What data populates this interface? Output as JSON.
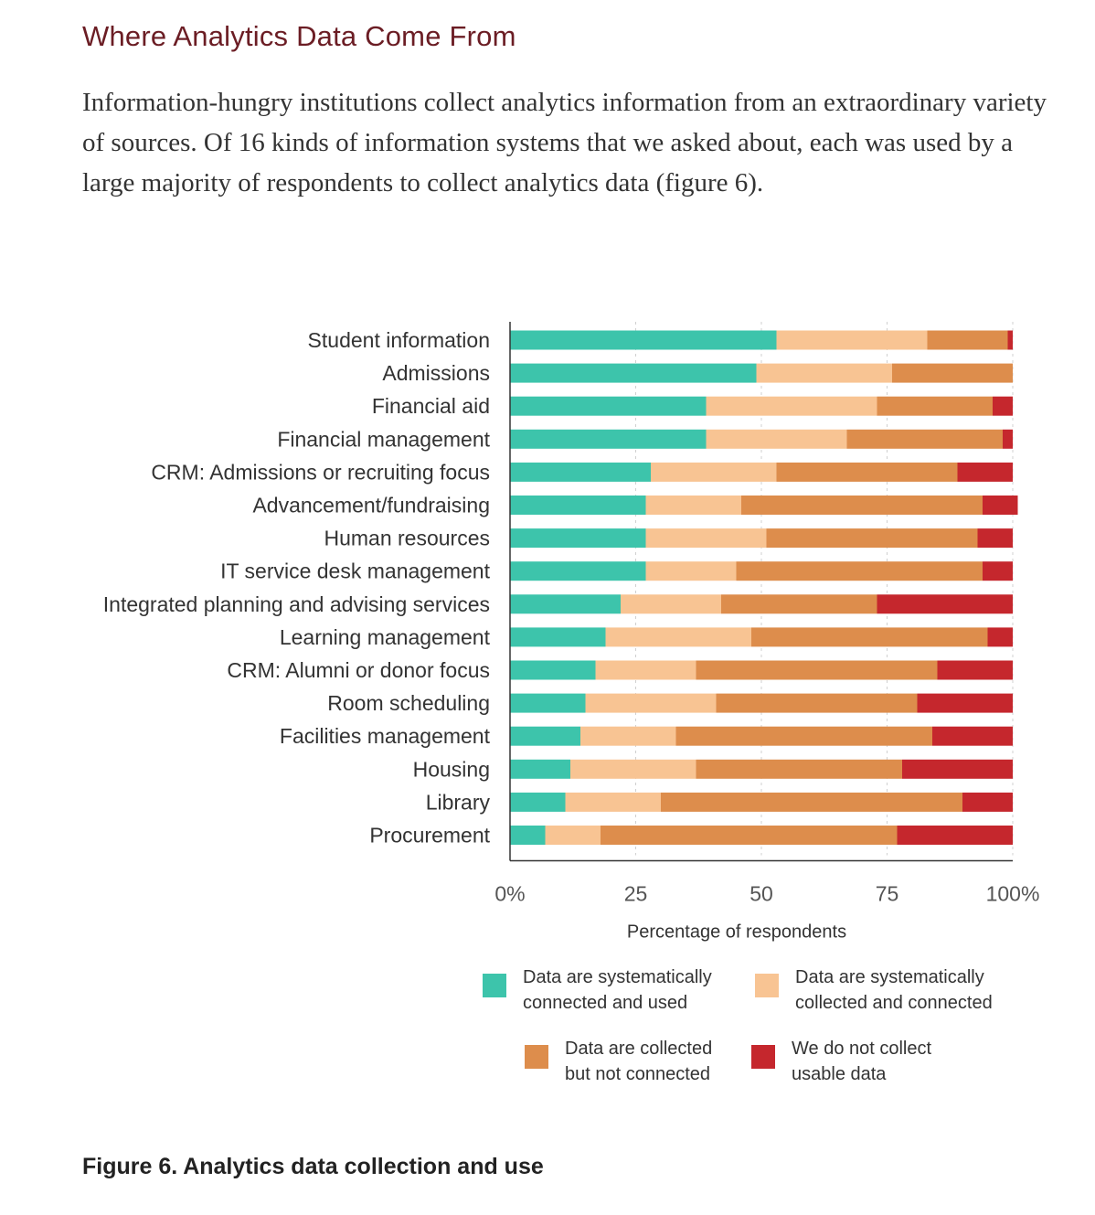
{
  "page": {
    "heading": "Where Analytics Data Come From",
    "intro": "Information-hungry institutions collect analytics information from an extraordinary variety of sources. Of 16 kinds of information systems that we asked about, each was used by a large majority of respondents to collect analytics data (figure 6).",
    "caption": "Figure 6. Analytics data collection and use"
  },
  "chart_data": {
    "type": "bar",
    "orientation": "horizontal",
    "stacked": true,
    "title": "Figure 6. Analytics data collection and use",
    "xlabel": "Percentage of respondents",
    "ylabel": "",
    "xlim": [
      0,
      100
    ],
    "ticks": [
      "0%",
      "25",
      "50",
      "75",
      "100%"
    ],
    "tick_values": [
      0,
      25,
      50,
      75,
      100
    ],
    "grid": true,
    "legend_position": "bottom",
    "categories": [
      "Student information",
      "Admissions",
      "Financial aid",
      "Financial management",
      "CRM: Admissions or recruiting focus",
      "Advancement/fundraising",
      "Human resources",
      "IT service desk management",
      "Integrated planning and advising services",
      "Learning management",
      "CRM: Alumni or donor focus",
      "Room scheduling",
      "Facilities management",
      "Housing",
      "Library",
      "Procurement"
    ],
    "series": [
      {
        "name": "Data are systematically connected and used",
        "color": "#3dc4ab",
        "values": [
          53,
          49,
          39,
          39,
          28,
          27,
          27,
          27,
          22,
          19,
          17,
          15,
          14,
          12,
          11,
          7
        ]
      },
      {
        "name": "Data are systematically collected and connected",
        "color": "#f8c493",
        "values": [
          30,
          27,
          34,
          28,
          25,
          19,
          24,
          18,
          20,
          29,
          20,
          26,
          19,
          25,
          19,
          11
        ]
      },
      {
        "name": "Data are collected but not connected",
        "color": "#dd8d4c",
        "values": [
          16,
          24,
          23,
          31,
          36,
          48,
          42,
          49,
          31,
          47,
          48,
          40,
          51,
          41,
          60,
          59
        ]
      },
      {
        "name": "We do not collect usable data",
        "color": "#c5272d",
        "values": [
          1,
          0,
          4,
          2,
          11,
          7,
          7,
          6,
          27,
          5,
          15,
          19,
          16,
          22,
          10,
          23
        ]
      }
    ]
  },
  "legend": [
    {
      "text": "Data are systematically\nconnected and used",
      "color": "#3dc4ab"
    },
    {
      "text": "Data are systematically\ncollected and connected",
      "color": "#f8c493"
    },
    {
      "text": "Data are collected\nbut not connected",
      "color": "#dd8d4c"
    },
    {
      "text": "We do not collect\nusable data",
      "color": "#c5272d"
    }
  ]
}
